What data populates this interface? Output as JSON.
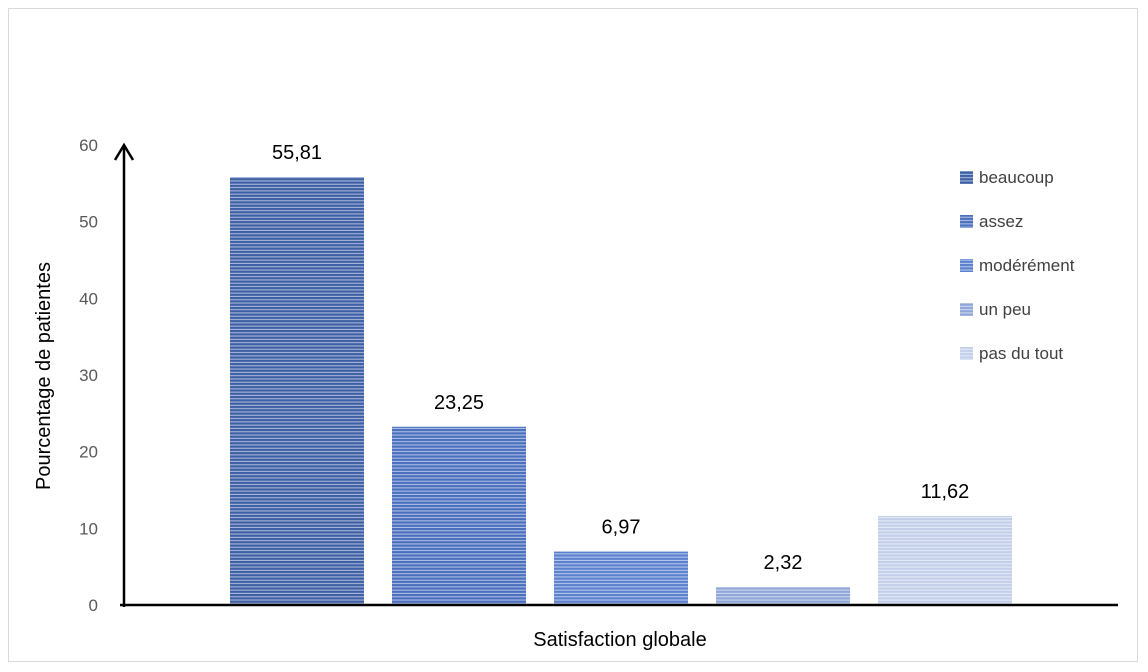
{
  "chart_data": {
    "type": "bar",
    "title": "",
    "xlabel": "Satisfaction globale",
    "ylabel": "Pourcentage de patientes",
    "ylim": [
      0,
      60
    ],
    "yticks": [
      0,
      10,
      20,
      30,
      40,
      50,
      60
    ],
    "grid": false,
    "legend_position": "right",
    "categories": [
      "beaucoup",
      "assez",
      "modérément",
      "un peu",
      "pas du tout"
    ],
    "values": [
      55.81,
      23.25,
      6.97,
      2.32,
      11.62
    ],
    "value_labels": [
      "55,81",
      "23,25",
      "6,97",
      "2,32",
      "11,62"
    ],
    "colors": [
      "#3d5fa5",
      "#4a6fbf",
      "#5a80cf",
      "#8fa6d8",
      "#c3cfea"
    ],
    "stripe_color": "#ffffff"
  }
}
